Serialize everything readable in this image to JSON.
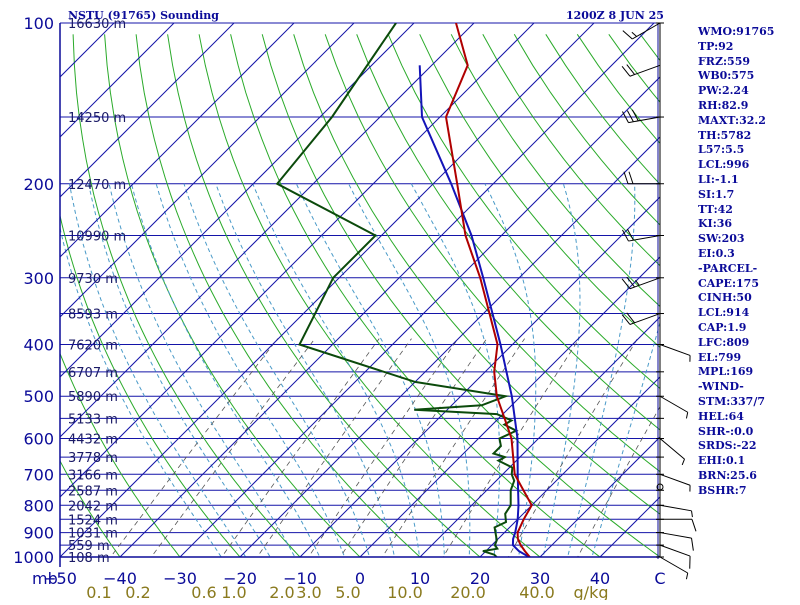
{
  "header": {
    "station_title": "NSTU (91765) Sounding",
    "time_label": "1200Z  8 JUN 25"
  },
  "indices": [
    "WMO:91765",
    "TP:92",
    "FRZ:559",
    "WB0:575",
    "PW:2.24",
    "RH:82.9",
    "MAXT:32.2",
    "TH:5782",
    "L57:5.5",
    "LCL:996",
    "LI:-1.1",
    "SI:1.7",
    "TT:42",
    "KI:36",
    "SW:203",
    "EI:0.3",
    "-PARCEL-",
    "CAPE:175",
    "CINH:50",
    "LCL:914",
    "CAP:1.9",
    "LFC:809",
    "EL:799",
    "MPL:169",
    "-WIND-",
    "STM:337/7",
    "HEL:64",
    "SHR-:0.0",
    "SRDS:-22",
    "EHI:0.1",
    "BRN:25.6",
    "BSHR:7"
  ],
  "colors": {
    "axis": "#0b0b99",
    "isobar": "#1414a8",
    "isotherm": "#1414a8",
    "dry_adiabat": "#2aaa2a",
    "moist_adiabat": "#4a9ac8",
    "mixing_ratio": "#555555",
    "temperature": "#b00000",
    "dewpoint": "#0b4a0b",
    "parcel": "#1414b8",
    "wind": "#000000"
  },
  "chart_data": {
    "type": "skew-t",
    "pressure_unit_label": "mb",
    "mixing_ratio_unit_label": "g/kg",
    "pressure_ticks": [
      100,
      200,
      300,
      400,
      500,
      600,
      700,
      800,
      900,
      1000
    ],
    "temperature_ticks": [
      -50,
      -40,
      -30,
      -20,
      -10,
      0,
      10,
      20,
      30,
      40
    ],
    "mixing_ratio_ticks": [
      {
        "label": "0.1",
        "temp": -43.5
      },
      {
        "label": "0.2",
        "temp": -37
      },
      {
        "label": "0.6",
        "temp": -26
      },
      {
        "label": "1.0",
        "temp": -21
      },
      {
        "label": "2.0",
        "temp": -13
      },
      {
        "label": "3.0",
        "temp": -8.5
      },
      {
        "label": "5.0",
        "temp": -2
      },
      {
        "label": "10.0",
        "temp": 7.5
      },
      {
        "label": "20.0",
        "temp": 18
      },
      {
        "label": "40.0",
        "temp": 29.5
      },
      {
        "label": "g/kg",
        "temp": 38.5
      }
    ],
    "height_levels": [
      {
        "p": 100,
        "label": "16630 m"
      },
      {
        "p": 150,
        "label": "14250 m"
      },
      {
        "p": 200,
        "label": "12470 m"
      },
      {
        "p": 250,
        "label": "10990 m"
      },
      {
        "p": 300,
        "label": "9730 m"
      },
      {
        "p": 350,
        "label": "8593 m"
      },
      {
        "p": 400,
        "label": "7620 m"
      },
      {
        "p": 450,
        "label": "6707 m"
      },
      {
        "p": 500,
        "label": "5890 m"
      },
      {
        "p": 550,
        "label": "5133 m"
      },
      {
        "p": 600,
        "label": "4432 m"
      },
      {
        "p": 650,
        "label": "3778 m"
      },
      {
        "p": 700,
        "label": "3166 m"
      },
      {
        "p": 750,
        "label": "2587 m"
      },
      {
        "p": 800,
        "label": "2042 m"
      },
      {
        "p": 850,
        "label": "1524 m"
      },
      {
        "p": 900,
        "label": "1031 m"
      },
      {
        "p": 950,
        "label": "559 m"
      },
      {
        "p": 1000,
        "label": "108 m"
      }
    ],
    "temperature_profile": [
      {
        "p": 1003,
        "t": 28.5
      },
      {
        "p": 975,
        "t": 26.5
      },
      {
        "p": 950,
        "t": 24.8
      },
      {
        "p": 925,
        "t": 23.3
      },
      {
        "p": 900,
        "t": 22.2
      },
      {
        "p": 850,
        "t": 21.0
      },
      {
        "p": 800,
        "t": 20.0
      },
      {
        "p": 700,
        "t": 12.0
      },
      {
        "p": 600,
        "t": 5.5
      },
      {
        "p": 550,
        "t": 1.0
      },
      {
        "p": 500,
        "t": -4.0
      },
      {
        "p": 450,
        "t": -8.5
      },
      {
        "p": 400,
        "t": -12.5
      },
      {
        "p": 350,
        "t": -19.0
      },
      {
        "p": 300,
        "t": -26.5
      },
      {
        "p": 250,
        "t": -36.0
      },
      {
        "p": 200,
        "t": -46.0
      },
      {
        "p": 150,
        "t": -59.0
      },
      {
        "p": 120,
        "t": -64.0
      },
      {
        "p": 100,
        "t": -73.0
      }
    ],
    "dewpoint_profile": [
      {
        "p": 1003,
        "t": 23.0
      },
      {
        "p": 990,
        "t": 22.0
      },
      {
        "p": 975,
        "t": 19.5
      },
      {
        "p": 965,
        "t": 21.5
      },
      {
        "p": 950,
        "t": 20.5
      },
      {
        "p": 930,
        "t": 20.0
      },
      {
        "p": 910,
        "t": 19.0
      },
      {
        "p": 880,
        "t": 17.5
      },
      {
        "p": 860,
        "t": 18.5
      },
      {
        "p": 830,
        "t": 17.0
      },
      {
        "p": 800,
        "t": 16.5
      },
      {
        "p": 750,
        "t": 14.0
      },
      {
        "p": 720,
        "t": 13.0
      },
      {
        "p": 700,
        "t": 11.5
      },
      {
        "p": 680,
        "t": 10.5
      },
      {
        "p": 660,
        "t": 7.0
      },
      {
        "p": 650,
        "t": 7.5
      },
      {
        "p": 640,
        "t": 5.0
      },
      {
        "p": 620,
        "t": 5.0
      },
      {
        "p": 600,
        "t": 3.5
      },
      {
        "p": 580,
        "t": 5.0
      },
      {
        "p": 565,
        "t": 2.0
      },
      {
        "p": 555,
        "t": 2.5
      },
      {
        "p": 540,
        "t": -1.0
      },
      {
        "p": 530,
        "t": -15.5
      },
      {
        "p": 520,
        "t": -5.0
      },
      {
        "p": 500,
        "t": -2.5
      },
      {
        "p": 470,
        "t": -20.0
      },
      {
        "p": 400,
        "t": -45.5
      },
      {
        "p": 300,
        "t": -51.0
      },
      {
        "p": 250,
        "t": -51.0
      },
      {
        "p": 200,
        "t": -76.0
      },
      {
        "p": 150,
        "t": -78.0
      },
      {
        "p": 100,
        "t": -83.0
      }
    ],
    "parcel_profile": [
      {
        "p": 1003,
        "t": 28.5
      },
      {
        "p": 975,
        "t": 25.5
      },
      {
        "p": 950,
        "t": 23.5
      },
      {
        "p": 925,
        "t": 22.5
      },
      {
        "p": 900,
        "t": 21.8
      },
      {
        "p": 850,
        "t": 20.0
      },
      {
        "p": 800,
        "t": 17.8
      },
      {
        "p": 700,
        "t": 12.5
      },
      {
        "p": 600,
        "t": 6.5
      },
      {
        "p": 500,
        "t": -1.5
      },
      {
        "p": 400,
        "t": -12.0
      },
      {
        "p": 350,
        "t": -18.5
      },
      {
        "p": 300,
        "t": -26.0
      },
      {
        "p": 250,
        "t": -35.0
      },
      {
        "p": 200,
        "t": -47.0
      },
      {
        "p": 150,
        "t": -63.0
      },
      {
        "p": 120,
        "t": -72.0
      }
    ],
    "wind_barbs": [
      {
        "p": 1000,
        "dir": 120,
        "spd": 5
      },
      {
        "p": 950,
        "dir": 110,
        "spd": 10
      },
      {
        "p": 900,
        "dir": 100,
        "spd": 10
      },
      {
        "p": 850,
        "dir": 90,
        "spd": 10
      },
      {
        "p": 800,
        "dir": 100,
        "spd": 5
      },
      {
        "p": 700,
        "dir": 110,
        "spd": 5
      },
      {
        "p": 600,
        "dir": 130,
        "spd": 5
      },
      {
        "p": 500,
        "dir": 120,
        "spd": 5
      },
      {
        "p": 400,
        "dir": 110,
        "spd": 5
      },
      {
        "p": 350,
        "dir": 250,
        "spd": 20
      },
      {
        "p": 300,
        "dir": 250,
        "spd": 25
      },
      {
        "p": 250,
        "dir": 260,
        "spd": 20
      },
      {
        "p": 200,
        "dir": 270,
        "spd": 20
      },
      {
        "p": 150,
        "dir": 260,
        "spd": 30
      },
      {
        "p": 120,
        "dir": 250,
        "spd": 20
      },
      {
        "p": 100,
        "dir": 240,
        "spd": 15
      }
    ]
  }
}
